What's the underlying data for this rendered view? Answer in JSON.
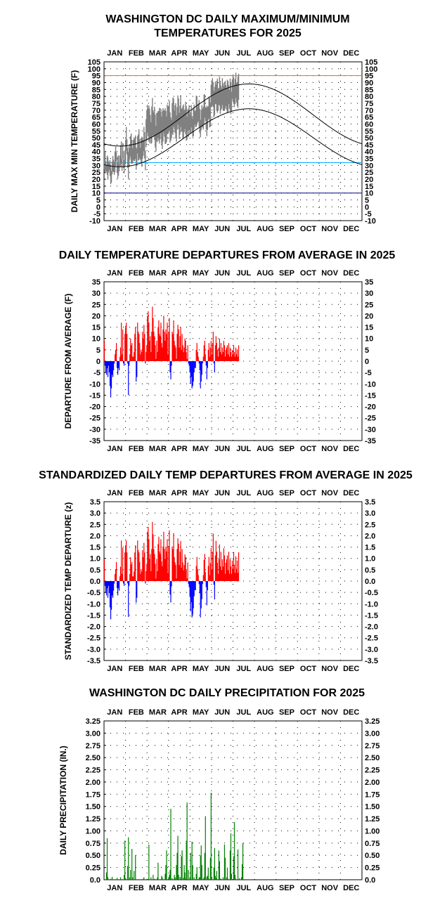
{
  "months": [
    "JAN",
    "FEB",
    "MAR",
    "APR",
    "MAY",
    "JUN",
    "JUL",
    "AUG",
    "SEP",
    "OCT",
    "NOV",
    "DEC"
  ],
  "colors": {
    "observed_temp": "#808080",
    "normal_line": "#000000",
    "record_high_line": "#ff6600",
    "freezing_line": "#00aaff",
    "low_line": "#000080",
    "positive": "#ff0000",
    "negative": "#0000ff",
    "precip": "#008000"
  },
  "chart_data": [
    {
      "id": "temps",
      "type": "line",
      "title": [
        "WASHINGTON DC DAILY MAXIMUM/MINIMUM",
        "TEMPERATURES FOR 2025"
      ],
      "ylabel": "DAILY MAX MIN TEMPERATURE (F)",
      "ylim": [
        -10,
        105
      ],
      "yticks": [
        "-10",
        "-5",
        "0",
        "5",
        "10",
        "15",
        "20",
        "25",
        "30",
        "35",
        "40",
        "45",
        "50",
        "55",
        "60",
        "65",
        "70",
        "75",
        "80",
        "85",
        "90",
        "95",
        "100",
        "105"
      ],
      "reference_lines": [
        95,
        32,
        10
      ],
      "grid": true,
      "observed_through_day": 195,
      "normal_high": {
        "min": 44,
        "max": 89,
        "peak_day": 205
      },
      "normal_low": {
        "min": 29,
        "max": 71,
        "peak_day": 205
      },
      "monthly_observed_high_avg": [
        37,
        45,
        62,
        68,
        74,
        86,
        90
      ],
      "monthly_observed_low_avg": [
        26,
        30,
        42,
        49,
        58,
        68,
        73
      ]
    },
    {
      "id": "departures",
      "type": "bar",
      "title": [
        "DAILY TEMPERATURE DEPARTURES FROM AVERAGE IN 2025"
      ],
      "ylabel": "DEPARTURE FROM AVERAGE (F)",
      "ylim": [
        -35,
        35
      ],
      "yticks": [
        "-35",
        "-30",
        "-25",
        "-20",
        "-15",
        "-10",
        "-5",
        "0",
        "5",
        "10",
        "15",
        "20",
        "25",
        "30",
        "35"
      ],
      "grid": true,
      "values": [
        9,
        -2,
        -5,
        -6,
        -3,
        -7,
        -2,
        -5,
        -11,
        -16,
        -12,
        -6,
        -7,
        -4,
        -1,
        3,
        5,
        8,
        -3,
        -6,
        -3,
        -4,
        2,
        6,
        17,
        3,
        14,
        -1,
        -2,
        12,
        15,
        17,
        12,
        -1,
        -15,
        -2,
        3,
        10,
        7,
        8,
        2,
        2,
        4,
        12,
        15,
        -9,
        -7,
        17,
        13,
        12,
        8,
        3,
        5,
        4,
        13,
        10,
        16,
        12,
        -1,
        4,
        7,
        20,
        22,
        17,
        9,
        11,
        4,
        13,
        24,
        19,
        13,
        11,
        7,
        1,
        9,
        4,
        15,
        18,
        12,
        11,
        17,
        8,
        6,
        14,
        20,
        13,
        9,
        14,
        12,
        17,
        3,
        13,
        19,
        -5,
        -8,
        -2,
        13,
        12,
        18,
        9,
        7,
        6,
        1,
        12,
        16,
        14,
        6,
        11,
        15,
        5,
        12,
        7,
        4,
        6,
        10,
        9,
        4,
        1,
        7,
        -1,
        -2,
        -5,
        -10,
        -7,
        -12,
        -11,
        -9,
        -5,
        -3,
        -3,
        5,
        8,
        4,
        2,
        -1,
        -4,
        -12,
        -9,
        -6,
        -1,
        2,
        7,
        9,
        3,
        -2,
        -8,
        -3,
        5,
        8,
        2,
        6,
        9,
        3,
        8,
        13,
        -1,
        -5,
        7,
        11,
        8,
        5,
        2,
        6,
        10,
        4,
        8,
        3,
        6,
        4,
        9,
        7,
        2,
        5,
        6,
        7,
        3,
        8,
        2,
        6,
        4,
        2,
        5,
        3,
        7,
        4,
        2,
        6,
        3,
        5,
        2,
        7
      ]
    },
    {
      "id": "standardized",
      "type": "bar",
      "title": [
        "STANDARDIZED DAILY TEMP DEPARTURES FROM AVERAGE IN 2025"
      ],
      "ylabel": "STANDARDIZED TEMP DEPARTURE (z)",
      "ylim": [
        -3.5,
        3.5
      ],
      "yticks": [
        "-3.5",
        "-3.0",
        "-2.5",
        "-2.0",
        "-1.5",
        "-1.0",
        "-0.5",
        "0.0",
        "0.5",
        "1.0",
        "1.5",
        "2.0",
        "2.5",
        "3.0",
        "3.5"
      ],
      "grid": true,
      "derived_from": "departures",
      "scale_by_month": [
        9.5,
        9.5,
        9.2,
        8.5,
        7.5,
        6.2,
        5.5
      ]
    },
    {
      "id": "precip",
      "type": "bar",
      "title": [
        "WASHINGTON DC DAILY PRECIPITATION FOR 2025"
      ],
      "ylabel": "DAILY PRECIPITATION (IN.)",
      "ylim": [
        0,
        3.25
      ],
      "yticks": [
        "0.0",
        "0.25",
        "0.50",
        "0.75",
        "1.00",
        "1.25",
        "1.50",
        "1.75",
        "2.00",
        "2.25",
        "2.50",
        "2.75",
        "3.00",
        "3.25"
      ],
      "grid": true,
      "values": [
        0,
        0,
        0,
        0.15,
        0.85,
        0.05,
        0,
        0,
        0,
        0.02,
        0,
        0.06,
        0,
        0,
        0,
        0,
        0,
        0,
        0.04,
        0,
        0,
        0,
        0,
        0.05,
        0,
        0,
        0,
        0,
        0.1,
        0.8,
        0.03,
        0,
        0,
        0.28,
        0.87,
        0,
        0.05,
        0.2,
        0,
        0.63,
        0.05,
        0,
        0.18,
        0,
        0.5,
        0,
        0,
        0,
        0,
        0,
        0,
        0,
        0,
        0,
        0,
        0.02,
        0.05,
        0,
        0,
        0,
        0,
        0,
        0.02,
        0.72,
        0,
        0,
        0.05,
        0,
        0,
        0.1,
        0,
        0.02,
        0,
        0,
        0,
        0.05,
        0.35,
        0,
        0,
        0,
        0,
        0.08,
        0.05,
        0,
        0,
        0,
        0.12,
        0.3,
        0.6,
        0,
        0,
        0.05,
        0.1,
        0.2,
        1.45,
        0,
        0.03,
        0,
        0,
        0.1,
        0.05,
        0.02,
        0.3,
        0.55,
        0.9,
        0.1,
        0,
        0.06,
        0.02,
        0.48,
        0.6,
        0,
        0.04,
        0.3,
        0.15,
        0.02,
        0.8,
        1.58,
        0,
        0.2,
        0,
        0.05,
        0.55,
        0,
        0.78,
        0.3,
        0,
        0.05,
        0,
        0,
        0.12,
        0.26,
        0,
        0,
        0.05,
        0.05,
        0.5,
        0.7,
        0.3,
        0,
        0.02,
        0.05,
        0.55,
        1.3,
        0,
        0.06,
        0.08,
        0.25,
        0.02,
        0,
        0.45,
        1.78,
        0.06,
        0,
        0,
        0.25,
        0.65,
        0.08,
        0.03,
        0.18,
        0,
        0,
        0.6,
        0.38,
        0.02,
        0.02,
        0,
        0,
        0.05,
        0,
        0.72,
        0.45,
        0,
        0.05,
        0.25,
        0.02,
        0,
        0,
        0.6,
        0.95,
        0.12,
        0,
        0,
        0.48,
        1.18,
        0.1,
        0.02,
        0,
        0,
        0.62,
        0,
        0.03,
        0,
        0,
        0.05,
        0.32,
        0.75,
        0
      ]
    }
  ]
}
